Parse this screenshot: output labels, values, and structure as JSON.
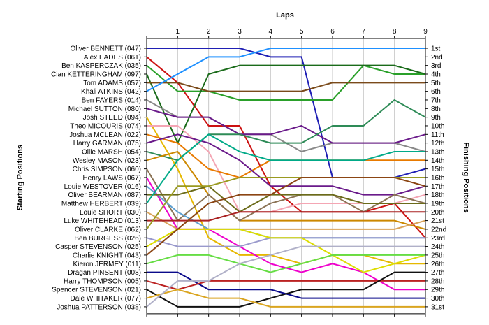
{
  "chart_data": {
    "type": "line",
    "title": "Laps",
    "ylabel_left": "Starting Positions",
    "ylabel_right": "Finishing Positions",
    "laps": [
      0,
      1,
      2,
      3,
      4,
      5,
      6,
      7,
      8,
      9
    ],
    "lap_ticks": [
      "1",
      "2",
      "3",
      "4",
      "5",
      "6",
      "7",
      "8",
      "9"
    ],
    "position_labels": [
      "1st",
      "2nd",
      "3rd",
      "4th",
      "5th",
      "6th",
      "7th",
      "8th",
      "9th",
      "10th",
      "11th",
      "12th",
      "13th",
      "14th",
      "15th",
      "16th",
      "17th",
      "18th",
      "19th",
      "20th",
      "21st",
      "22nd",
      "23rd",
      "24th",
      "25th",
      "26th",
      "27th",
      "28th",
      "29th",
      "30th",
      "31st"
    ],
    "series": [
      {
        "name": "Oliver BENNETT (047)",
        "color": "#1f1fb4",
        "values": [
          1,
          1,
          1,
          1,
          2,
          2,
          16,
          16,
          16,
          15
        ]
      },
      {
        "name": "Alex EADES (061)",
        "color": "#cc1111",
        "values": [
          2,
          5,
          10,
          10,
          17,
          20,
          20,
          20,
          19,
          23
        ]
      },
      {
        "name": "Ben KASPERCZAK (035)",
        "color": "#2aa02a",
        "values": [
          3,
          6,
          6,
          7,
          7,
          7,
          7,
          3,
          4,
          4
        ]
      },
      {
        "name": "Cian KETTERINGHAM (097)",
        "color": "#1a6b1a",
        "values": [
          4,
          12,
          4,
          3,
          3,
          3,
          3,
          3,
          3,
          4
        ]
      },
      {
        "name": "Tom ADAMS (057)",
        "color": "#7a4a1a",
        "values": [
          5,
          5,
          6,
          6,
          6,
          6,
          5,
          5,
          5,
          5
        ]
      },
      {
        "name": "Khali ATKINS (042)",
        "color": "#1e90ff",
        "values": [
          6,
          4,
          2,
          2,
          1,
          1,
          1,
          1,
          1,
          1
        ]
      },
      {
        "name": "Ben FAYERS (014)",
        "color": "#888888",
        "values": [
          7,
          9,
          9,
          11,
          11,
          13,
          12,
          12,
          12,
          13
        ]
      },
      {
        "name": "Michael SUTTON (080)",
        "color": "#6a1a8a",
        "values": [
          8,
          9,
          9,
          11,
          11,
          10,
          12,
          12,
          12,
          11
        ]
      },
      {
        "name": "Josh STEED (094)",
        "color": "#e6b800",
        "values": [
          9,
          15,
          23,
          25,
          25,
          26,
          25,
          25,
          26,
          26
        ]
      },
      {
        "name": "Theo MICOURIS (074)",
        "color": "#f4a6b4",
        "values": [
          10,
          10,
          13,
          20,
          20,
          19,
          19,
          19,
          19,
          18
        ]
      },
      {
        "name": "Joshua MCLEAN (022)",
        "color": "#e87a00",
        "values": [
          11,
          12,
          15,
          16,
          14,
          14,
          14,
          14,
          14,
          14
        ]
      },
      {
        "name": "Harry GARMAN (075)",
        "color": "#6a1a8a",
        "values": [
          12,
          11,
          12,
          14,
          17,
          17,
          17,
          18,
          18,
          17
        ]
      },
      {
        "name": "Ollie MARSH (054)",
        "color": "#2e8b57",
        "values": [
          13,
          14,
          11,
          11,
          12,
          12,
          10,
          10,
          7,
          9
        ]
      },
      {
        "name": "Wesley MASON (023)",
        "color": "#cc8800",
        "values": [
          14,
          13,
          18,
          21,
          21,
          21,
          21,
          21,
          21,
          22
        ]
      },
      {
        "name": "Chris SIMPSON (060)",
        "color": "#8b7355",
        "values": [
          15,
          21,
          18,
          21,
          19,
          18,
          18,
          20,
          18,
          19
        ]
      },
      {
        "name": "Henry LAWS (067)",
        "color": "#ee00cc",
        "values": [
          16,
          22,
          22,
          24,
          26,
          27,
          26,
          27,
          29,
          29
        ]
      },
      {
        "name": "Louie WESTOVER (016)",
        "color": "#5fa0d0",
        "values": [
          17,
          20,
          22,
          22,
          23,
          23,
          23,
          23,
          23,
          23
        ]
      },
      {
        "name": "Oliver BEARMAN (087)",
        "color": "#6b6b1a",
        "values": [
          18,
          18,
          17,
          20,
          18,
          18,
          18,
          19,
          19,
          19
        ]
      },
      {
        "name": "Matthew HERBERT (039)",
        "color": "#00aa88",
        "values": [
          19,
          14,
          11,
          13,
          14,
          14,
          14,
          14,
          13,
          13
        ]
      },
      {
        "name": "Louie SHORT (030)",
        "color": "#d9a35a",
        "values": [
          20,
          22,
          22,
          22,
          22,
          22,
          22,
          22,
          22,
          21
        ]
      },
      {
        "name": "Luke WHITEHEAD (013)",
        "color": "#aa2222",
        "values": [
          21,
          21,
          21,
          20,
          20,
          20,
          20,
          20,
          20,
          20
        ]
      },
      {
        "name": "Oliver CLARKE (062)",
        "color": "#9a9a20",
        "values": [
          22,
          17,
          17,
          16,
          16,
          16,
          16,
          16,
          16,
          16
        ]
      },
      {
        "name": "Ben BURGESS (026)",
        "color": "#9999cc",
        "values": [
          23,
          24,
          24,
          24,
          23,
          23,
          23,
          23,
          23,
          23
        ]
      },
      {
        "name": "Casper STEVENSON (025)",
        "color": "#dddd00",
        "values": [
          24,
          22,
          22,
          22,
          23,
          23,
          25,
          27,
          26,
          25
        ]
      },
      {
        "name": "Charlie KNIGHT (043)",
        "color": "#8b4513",
        "values": [
          25,
          22,
          19,
          18,
          18,
          16,
          16,
          16,
          16,
          17
        ]
      },
      {
        "name": "Kieron JERMEY (011)",
        "color": "#66dd44",
        "values": [
          26,
          25,
          25,
          26,
          27,
          26,
          25,
          25,
          25,
          25
        ]
      },
      {
        "name": "Dragan PINSENT (008)",
        "color": "#0a0a8a",
        "values": [
          27,
          27,
          29,
          29,
          29,
          30,
          30,
          30,
          30,
          30
        ]
      },
      {
        "name": "Harry THOMPSON (005)",
        "color": "#bb2222",
        "values": [
          28,
          29,
          28,
          28,
          28,
          28,
          28,
          28,
          28,
          28
        ]
      },
      {
        "name": "Spencer STEVENSON (021)",
        "color": "#111111",
        "values": [
          29,
          31,
          31,
          31,
          30,
          29,
          29,
          29,
          27,
          27
        ]
      },
      {
        "name": "Dale WHITAKER (077)",
        "color": "#daa520",
        "values": [
          30,
          29,
          30,
          30,
          31,
          31,
          31,
          31,
          31,
          31
        ]
      },
      {
        "name": "Joshua PATTERSON (038)",
        "color": "#b0b0c8",
        "values": [
          31,
          28,
          28,
          26,
          25,
          24,
          24,
          24,
          24,
          24
        ]
      }
    ]
  }
}
